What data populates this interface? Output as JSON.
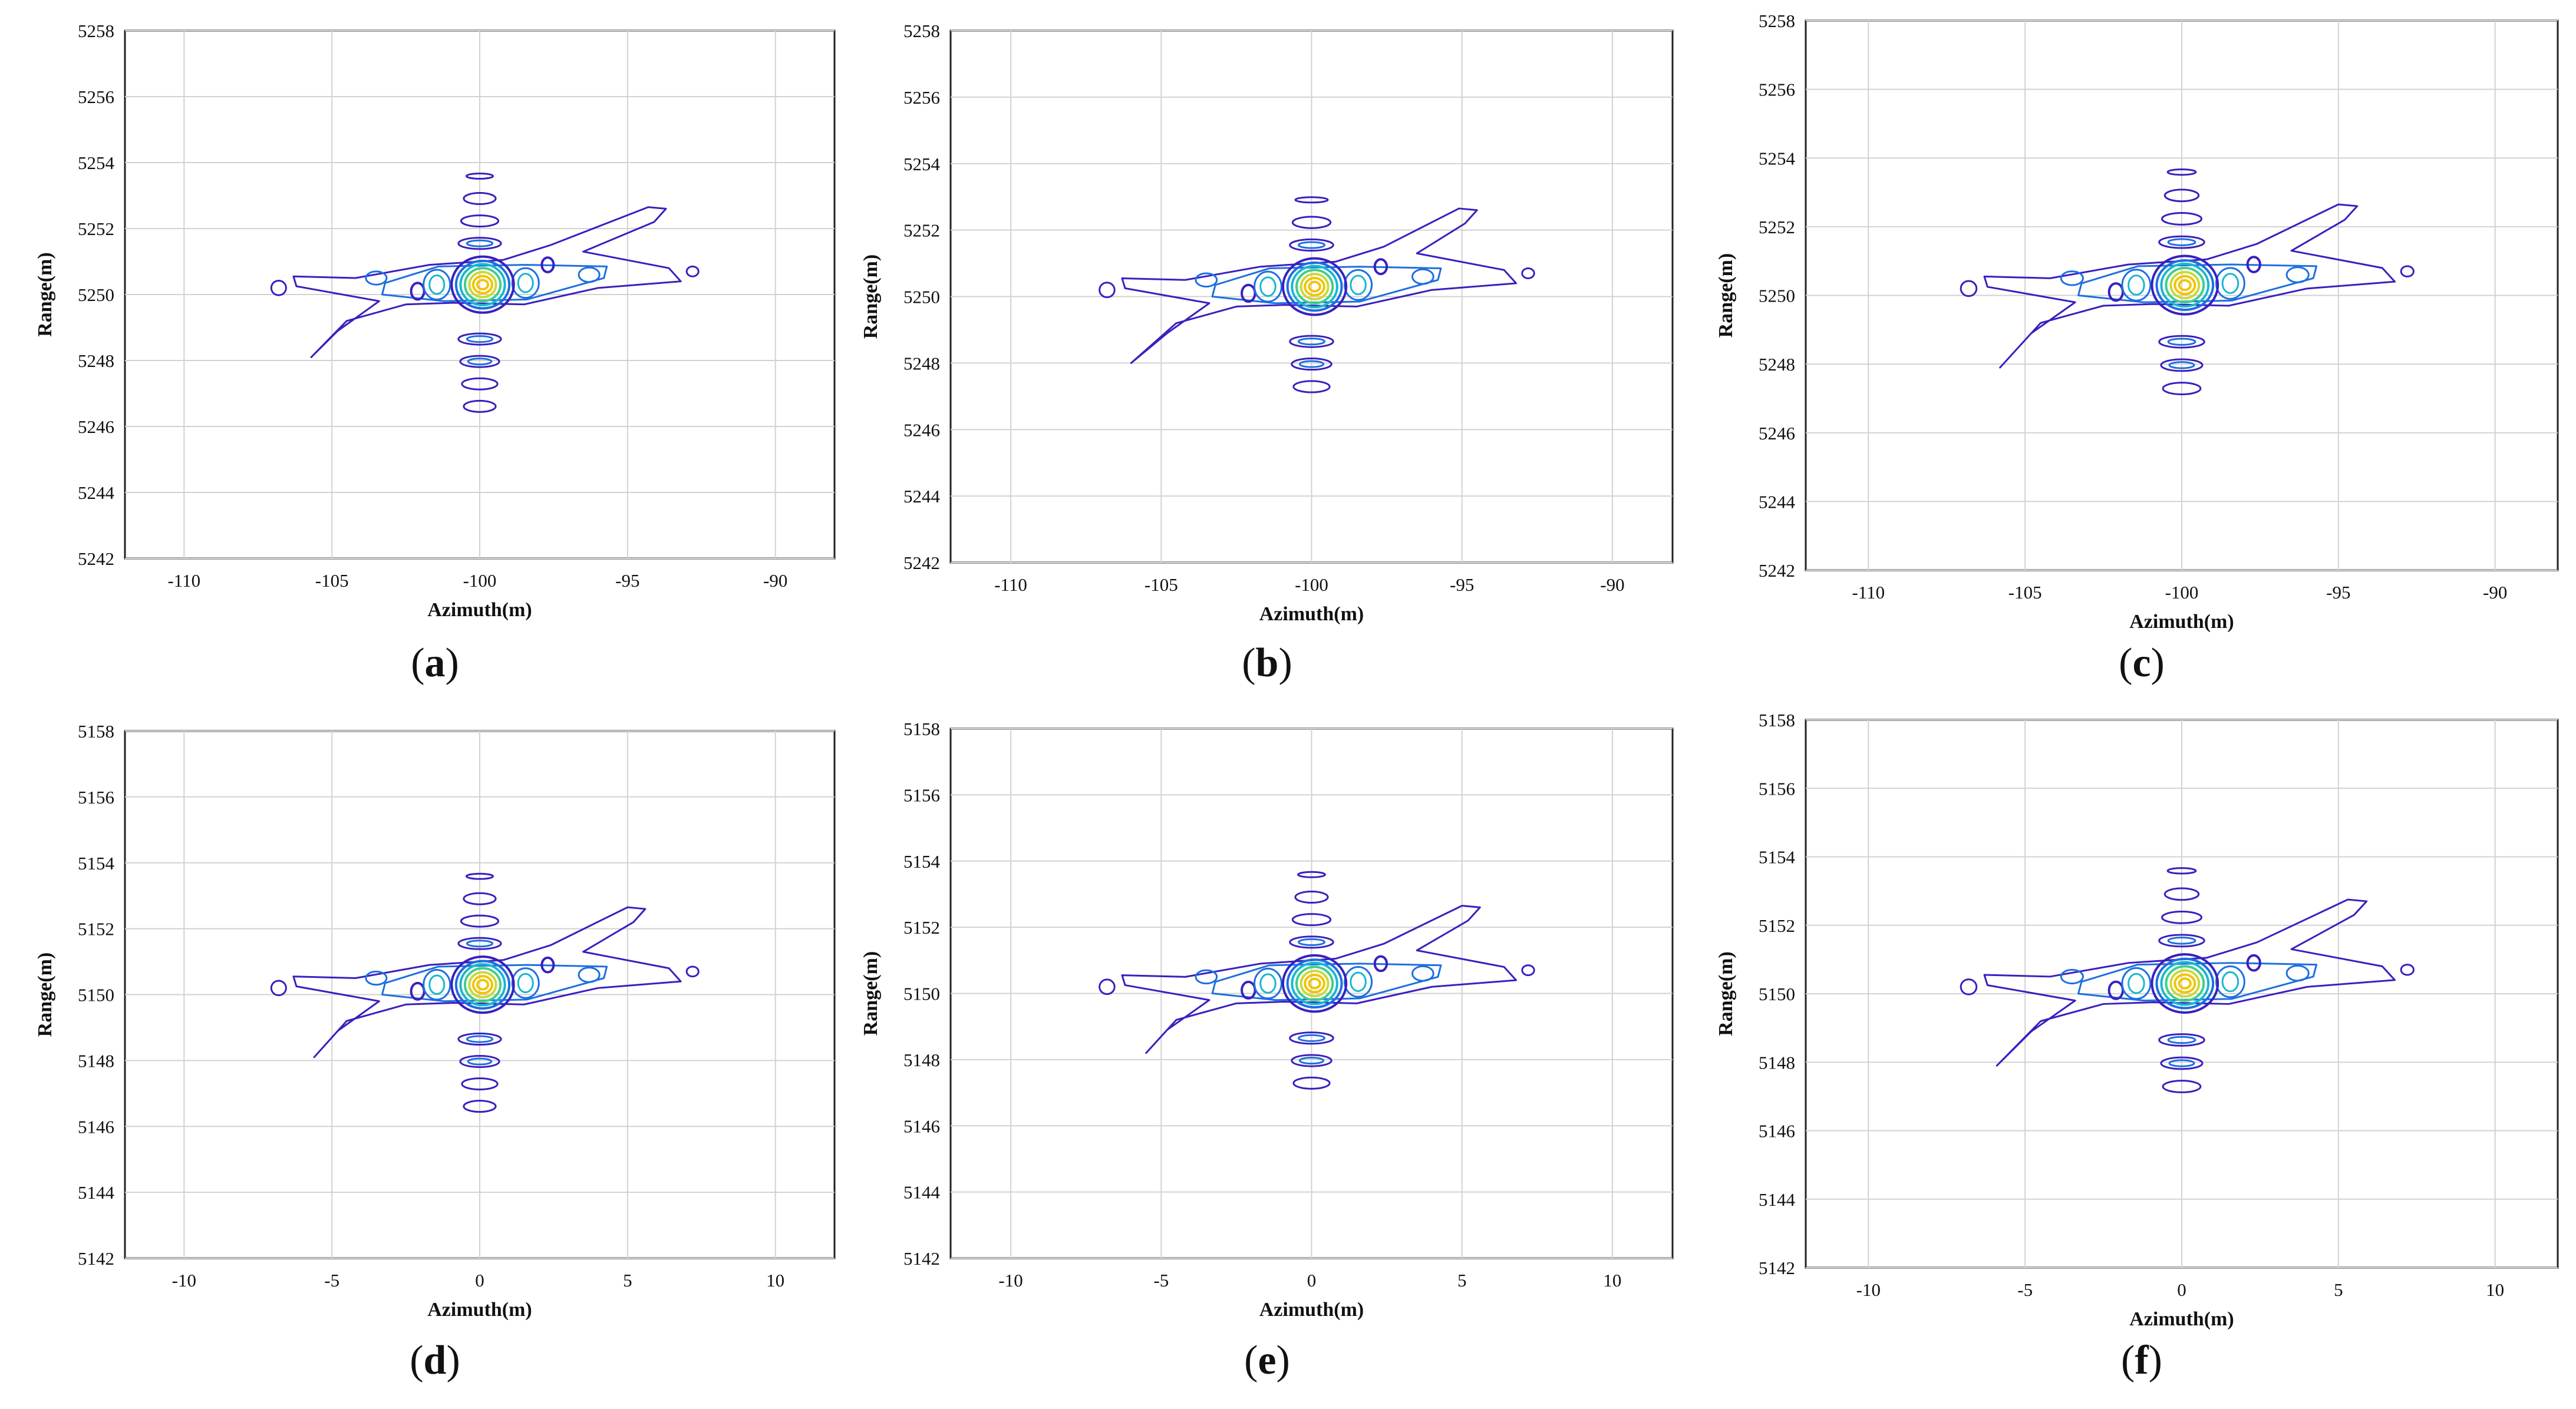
{
  "panel_label_parts": [
    "(",
    ")"
  ],
  "chart_data": [
    {
      "type": "contour",
      "label": "a",
      "xlabel": "Azimuth(m)",
      "ylabel": "Range(m)",
      "xlim": [
        -112,
        -88
      ],
      "ylim": [
        5242,
        5258
      ],
      "xticks": [
        -110,
        -105,
        -100,
        -95,
        -90
      ],
      "yticks": [
        5242,
        5244,
        5246,
        5248,
        5250,
        5252,
        5254,
        5256,
        5258
      ],
      "grid": true,
      "peak": [
        -100.0,
        5250.3
      ],
      "streak_right_end": [
        -93.7,
        5252.6
      ],
      "streak_left_end": [
        -105.7,
        5248.1
      ],
      "lower_sidelobe_end": [
        -100.0,
        5246.1
      ],
      "upper_sidelobe_end": [
        -100.0,
        5253.8
      ],
      "contour_colors": [
        "#3a1fbf",
        "#1d6fe0",
        "#19b6d0",
        "#3fce8c",
        "#c9d93a",
        "#f2c400"
      ]
    },
    {
      "type": "contour",
      "label": "b",
      "xlabel": "Azimuth(m)",
      "ylabel": "Range(m)",
      "xlim": [
        -112,
        -88
      ],
      "ylim": [
        5242,
        5258
      ],
      "xticks": [
        -110,
        -105,
        -100,
        -95,
        -90
      ],
      "yticks": [
        5242,
        5244,
        5246,
        5248,
        5250,
        5252,
        5254,
        5256,
        5258
      ],
      "grid": true,
      "peak": [
        -100.0,
        5250.3
      ],
      "streak_right_end": [
        -94.5,
        5252.6
      ],
      "streak_left_end": [
        -106.0,
        5248.0
      ],
      "lower_sidelobe_end": [
        -100.0,
        5246.8
      ],
      "upper_sidelobe_end": [
        -100.0,
        5253.0
      ],
      "contour_colors": [
        "#3a1fbf",
        "#1d6fe0",
        "#19b6d0",
        "#3fce8c",
        "#c9d93a",
        "#f2c400"
      ]
    },
    {
      "type": "contour",
      "label": "c",
      "xlabel": "Azimuth(m)",
      "ylabel": "Range(m)",
      "xlim": [
        -112,
        -88
      ],
      "ylim": [
        5242,
        5258
      ],
      "xticks": [
        -110,
        -105,
        -100,
        -95,
        -90
      ],
      "yticks": [
        5242,
        5244,
        5246,
        5248,
        5250,
        5252,
        5254,
        5256,
        5258
      ],
      "grid": true,
      "peak": [
        -100.0,
        5250.3
      ],
      "streak_right_end": [
        -94.4,
        5252.6
      ],
      "streak_left_end": [
        -105.8,
        5247.9
      ],
      "lower_sidelobe_end": [
        -100.0,
        5246.9
      ],
      "upper_sidelobe_end": [
        -100.0,
        5253.8
      ],
      "contour_colors": [
        "#3a1fbf",
        "#1d6fe0",
        "#19b6d0",
        "#3fce8c",
        "#c9d93a",
        "#f2c400"
      ]
    },
    {
      "type": "contour",
      "label": "d",
      "xlabel": "Azimuth(m)",
      "ylabel": "Range(m)",
      "xlim": [
        -12,
        12
      ],
      "ylim": [
        5142,
        5158
      ],
      "xticks": [
        -10,
        -5,
        0,
        5,
        10
      ],
      "yticks": [
        5142,
        5144,
        5146,
        5148,
        5150,
        5152,
        5154,
        5156,
        5158
      ],
      "grid": true,
      "peak": [
        0.0,
        5150.3
      ],
      "streak_right_end": [
        5.6,
        5152.6
      ],
      "streak_left_end": [
        -5.6,
        5148.1
      ],
      "lower_sidelobe_end": [
        0.0,
        5146.1
      ],
      "upper_sidelobe_end": [
        0.0,
        5153.8
      ],
      "contour_colors": [
        "#3a1fbf",
        "#1d6fe0",
        "#19b6d0",
        "#3fce8c",
        "#c9d93a",
        "#f2c400"
      ]
    },
    {
      "type": "contour",
      "label": "e",
      "xlabel": "Azimuth(m)",
      "ylabel": "Range(m)",
      "xlim": [
        -12,
        12
      ],
      "ylim": [
        5142,
        5158
      ],
      "xticks": [
        -10,
        -5,
        0,
        5,
        10
      ],
      "yticks": [
        5142,
        5144,
        5146,
        5148,
        5150,
        5152,
        5154,
        5156,
        5158
      ],
      "grid": true,
      "peak": [
        0.0,
        5150.3
      ],
      "streak_right_end": [
        5.6,
        5152.6
      ],
      "streak_left_end": [
        -5.5,
        5148.2
      ],
      "lower_sidelobe_end": [
        0.0,
        5146.8
      ],
      "upper_sidelobe_end": [
        0.0,
        5153.8
      ],
      "contour_colors": [
        "#3a1fbf",
        "#1d6fe0",
        "#19b6d0",
        "#3fce8c",
        "#c9d93a",
        "#f2c400"
      ]
    },
    {
      "type": "contour",
      "label": "f",
      "xlabel": "Azimuth(m)",
      "ylabel": "Range(m)",
      "xlim": [
        -12,
        12
      ],
      "ylim": [
        5142,
        5158
      ],
      "xticks": [
        -10,
        -5,
        0,
        5,
        10
      ],
      "yticks": [
        5142,
        5144,
        5146,
        5148,
        5150,
        5152,
        5154,
        5156,
        5158
      ],
      "grid": true,
      "peak": [
        0.0,
        5150.3
      ],
      "streak_right_end": [
        5.9,
        5152.7
      ],
      "streak_left_end": [
        -5.9,
        5147.9
      ],
      "lower_sidelobe_end": [
        0.0,
        5146.8
      ],
      "upper_sidelobe_end": [
        0.0,
        5153.8
      ],
      "contour_colors": [
        "#3a1fbf",
        "#1d6fe0",
        "#19b6d0",
        "#3fce8c",
        "#c9d93a",
        "#f2c400"
      ]
    }
  ]
}
